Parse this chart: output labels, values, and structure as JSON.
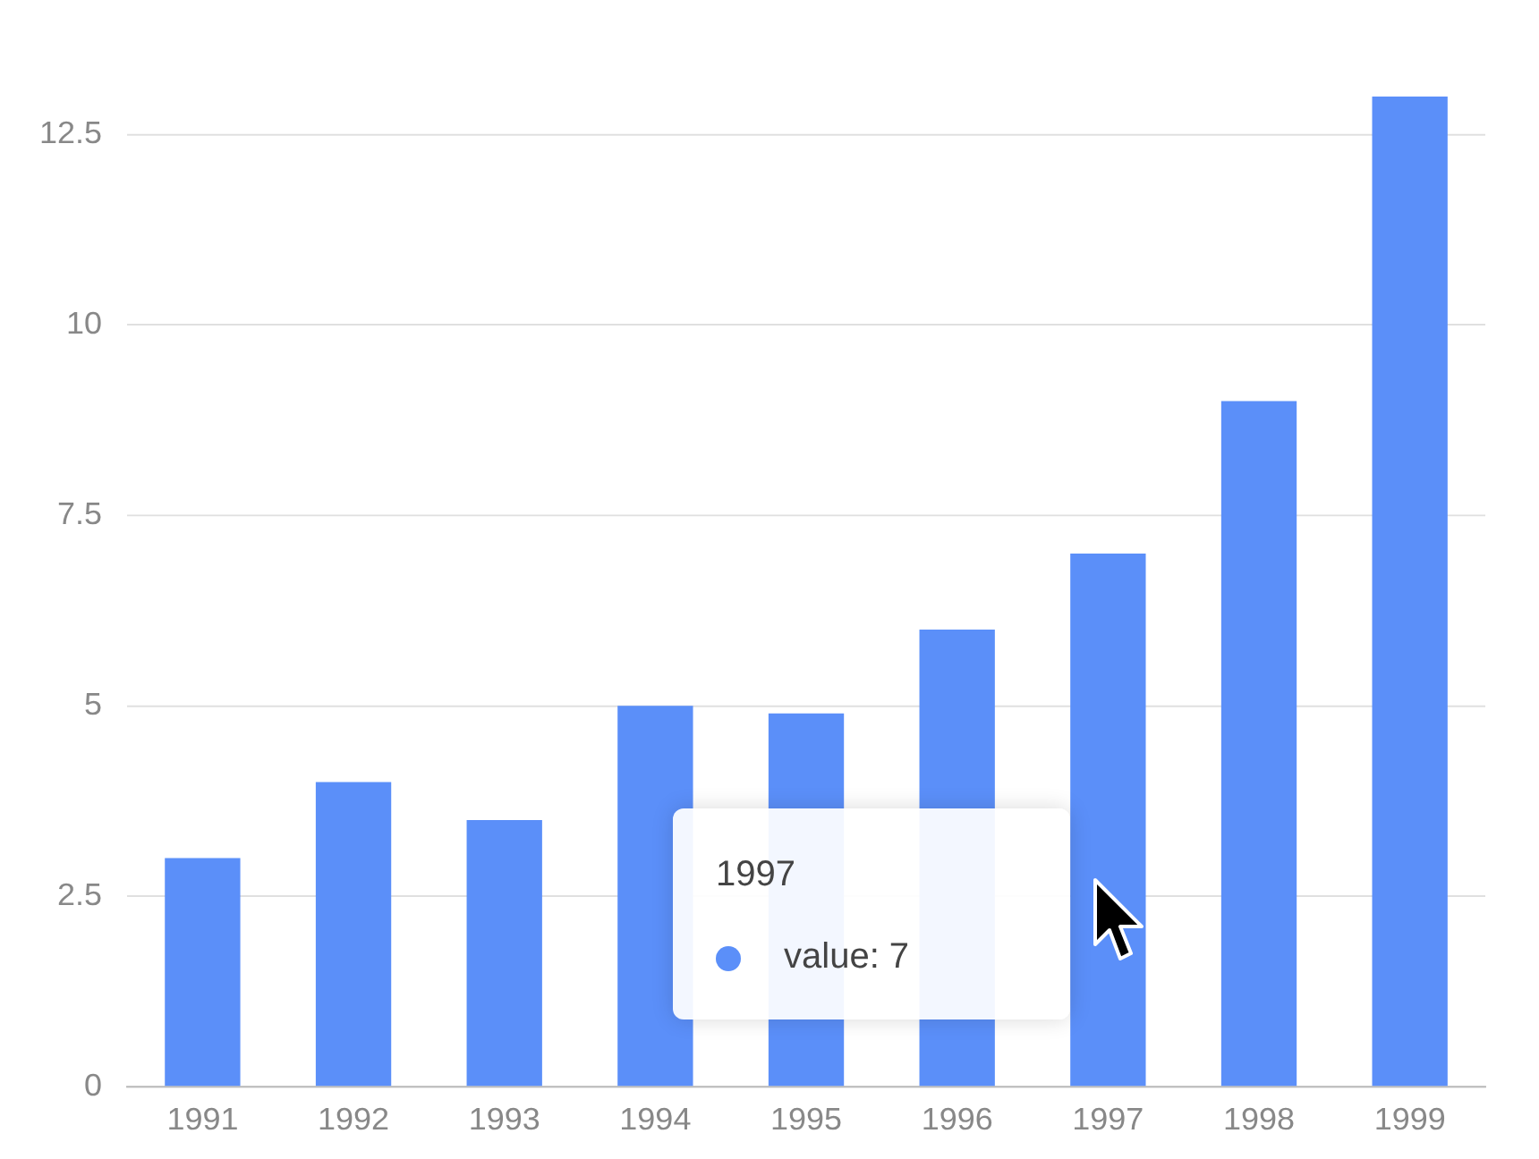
{
  "chart_data": {
    "type": "bar",
    "categories": [
      "1991",
      "1992",
      "1993",
      "1994",
      "1995",
      "1996",
      "1997",
      "1998",
      "1999"
    ],
    "values": [
      3,
      4,
      3.5,
      5,
      4.9,
      6,
      7,
      9,
      13
    ],
    "color": "#5b8ff9",
    "ylim": [
      0,
      13
    ],
    "yticks": [
      0,
      2.5,
      5,
      7.5,
      10,
      12.5
    ],
    "grid": "y",
    "annotations": [
      "1997",
      "value: 7"
    ]
  }
}
